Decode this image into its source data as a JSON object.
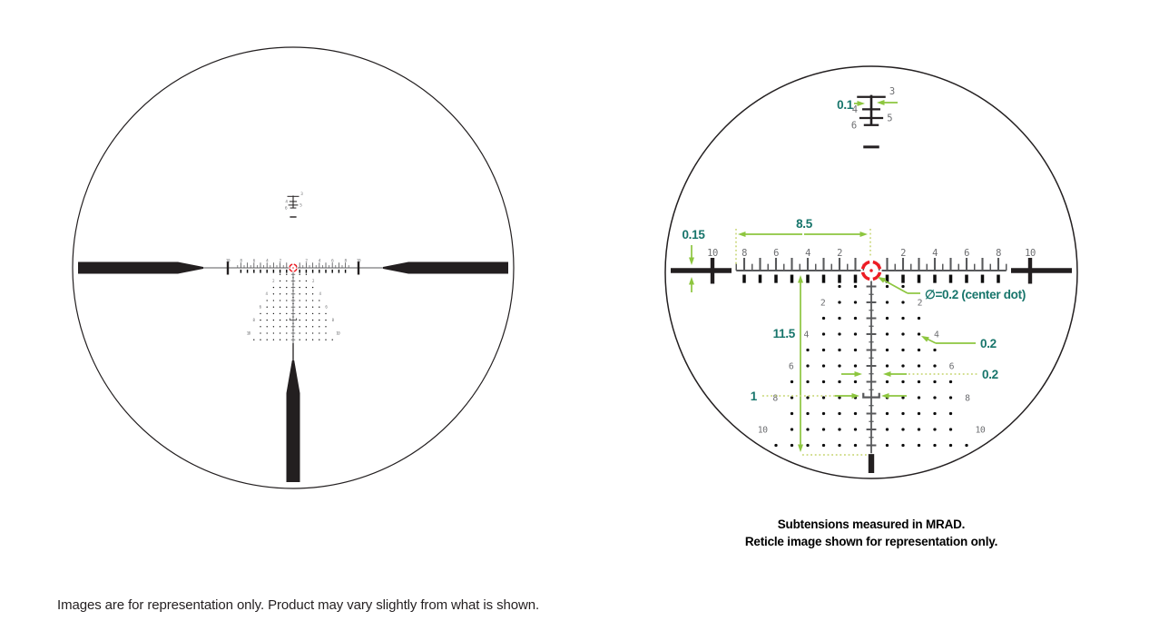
{
  "colors": {
    "black": "#231f20",
    "reticle_gray": "#58595b",
    "numeral_gray": "#6d6e71",
    "red": "#ed1c24",
    "green": "#8dc63f",
    "green_dotted": "#ccd97f",
    "teal": "#17756b"
  },
  "reticle": {
    "horizontal_numbers": [
      "2",
      "4",
      "6",
      "8"
    ],
    "edge_number": "10",
    "top_post_numbers": [
      "3",
      "4",
      "5",
      "6"
    ],
    "tree_numbers": [
      "2",
      "4",
      "6",
      "8",
      "10"
    ]
  },
  "right_diagram": {
    "annotations": {
      "post_width": "0.1",
      "scale_to_center": "8.5",
      "bar_thickness": "0.15",
      "tree_height": "11.5",
      "bracket_width": "1",
      "dot_diameter": "0.2",
      "hash_length": "0.2",
      "center_dot": "∅=0.2 (center dot)"
    },
    "caption_line1": "Subtensions measured in MRAD.",
    "caption_line2": "Reticle image shown for representation only."
  },
  "footer_note": "Images are for representation only. Product may vary slightly from what is shown."
}
